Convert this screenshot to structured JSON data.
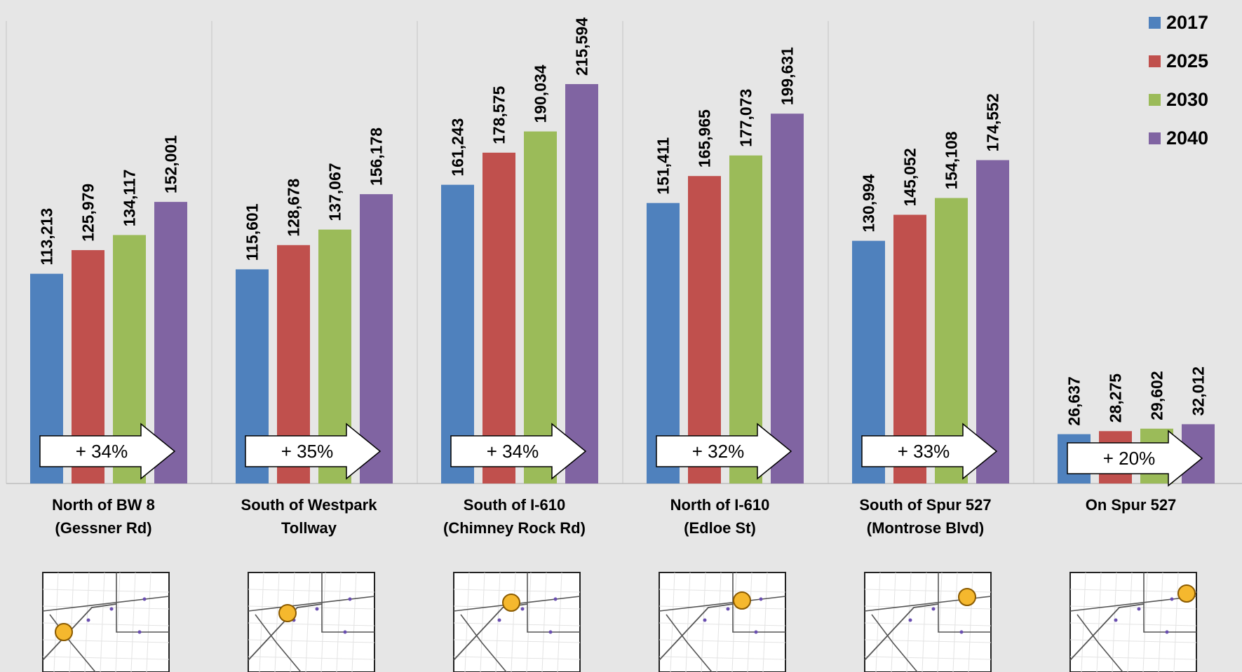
{
  "chart_data": {
    "type": "bar",
    "title": "",
    "xlabel": "",
    "ylabel": "",
    "ylim": [
      0,
      230000
    ],
    "grid": false,
    "legend_position": "top-right",
    "categories": [
      [
        "North of BW 8",
        "(Gessner Rd)"
      ],
      [
        "South of Westpark",
        "Tollway"
      ],
      [
        "South of I-610",
        "(Chimney Rock Rd)"
      ],
      [
        "North of I-610",
        "(Edloe St)"
      ],
      [
        "South of Spur 527",
        "(Montrose Blvd)"
      ],
      [
        "On Spur 527"
      ]
    ],
    "series": [
      {
        "name": "2017",
        "color": "#4f81bd",
        "values": [
          113213,
          115601,
          161243,
          151411,
          130994,
          26637
        ],
        "labels": [
          "113,213",
          "115,601",
          "161,243",
          "151,411",
          "130,994",
          "26,637"
        ]
      },
      {
        "name": "2025",
        "color": "#c0504d",
        "values": [
          125979,
          128678,
          178575,
          165965,
          145052,
          28275
        ],
        "labels": [
          "125,979",
          "128,678",
          "178,575",
          "165,965",
          "145,052",
          "28,275"
        ]
      },
      {
        "name": "2030",
        "color": "#9bbb59",
        "values": [
          134117,
          137067,
          190034,
          177073,
          154108,
          29602
        ],
        "labels": [
          "134,117",
          "137,067",
          "190,034",
          "177,073",
          "154,108",
          "29,602"
        ]
      },
      {
        "name": "2040",
        "color": "#8064a2",
        "values": [
          152001,
          156178,
          215594,
          199631,
          174552,
          32012
        ],
        "labels": [
          "152,001",
          "156,178",
          "215,594",
          "199,631",
          "174,552",
          "32,012"
        ]
      }
    ],
    "growth_annotations": [
      "+ 34%",
      "+ 35%",
      "+ 34%",
      "+ 32%",
      "+ 33%",
      "+ 20%"
    ],
    "location_marker_color": "#f5b82e"
  }
}
